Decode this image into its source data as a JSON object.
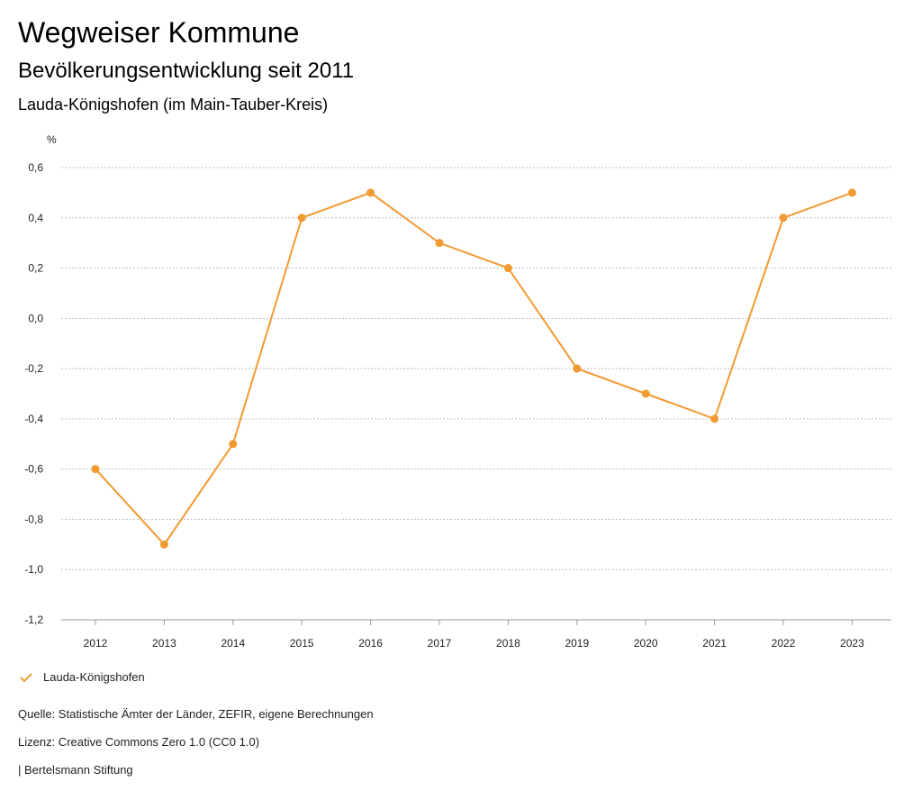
{
  "header": {
    "title": "Wegweiser Kommune",
    "subtitle": "Bevölkerungsentwicklung seit 2011",
    "region": "Lauda-Königshofen (im Main-Tauber-Kreis)"
  },
  "chart_data": {
    "type": "line",
    "ylabel": "%",
    "ylim": [
      -1.2,
      0.6
    ],
    "yticks": [
      "0,6",
      "0,4",
      "0,2",
      "0,0",
      "-0,2",
      "-0,4",
      "-0,6",
      "-0,8",
      "-1,0",
      "-1,2"
    ],
    "ytick_values": [
      0.6,
      0.4,
      0.2,
      0.0,
      -0.2,
      -0.4,
      -0.6,
      -0.8,
      -1.0,
      -1.2
    ],
    "categories": [
      "2012",
      "2013",
      "2014",
      "2015",
      "2016",
      "2017",
      "2018",
      "2019",
      "2020",
      "2021",
      "2022",
      "2023"
    ],
    "series": [
      {
        "name": "Lauda-Königshofen",
        "values": [
          -0.6,
          -0.9,
          -0.5,
          0.4,
          0.5,
          0.3,
          0.2,
          -0.2,
          -0.3,
          -0.4,
          0.4,
          0.5
        ],
        "color": "#f29a32"
      }
    ],
    "grid": true,
    "legend_position": "bottom-left"
  },
  "legend": {
    "label": "Lauda-Königshofen",
    "icon": "check-icon"
  },
  "footer": {
    "source": "Quelle: Statistische Ämter der Länder, ZEFIR, eigene Berechnungen",
    "license": "Lizenz: Creative Commons Zero 1.0 (CC0 1.0)",
    "publisher": "| Bertelsmann Stiftung"
  }
}
